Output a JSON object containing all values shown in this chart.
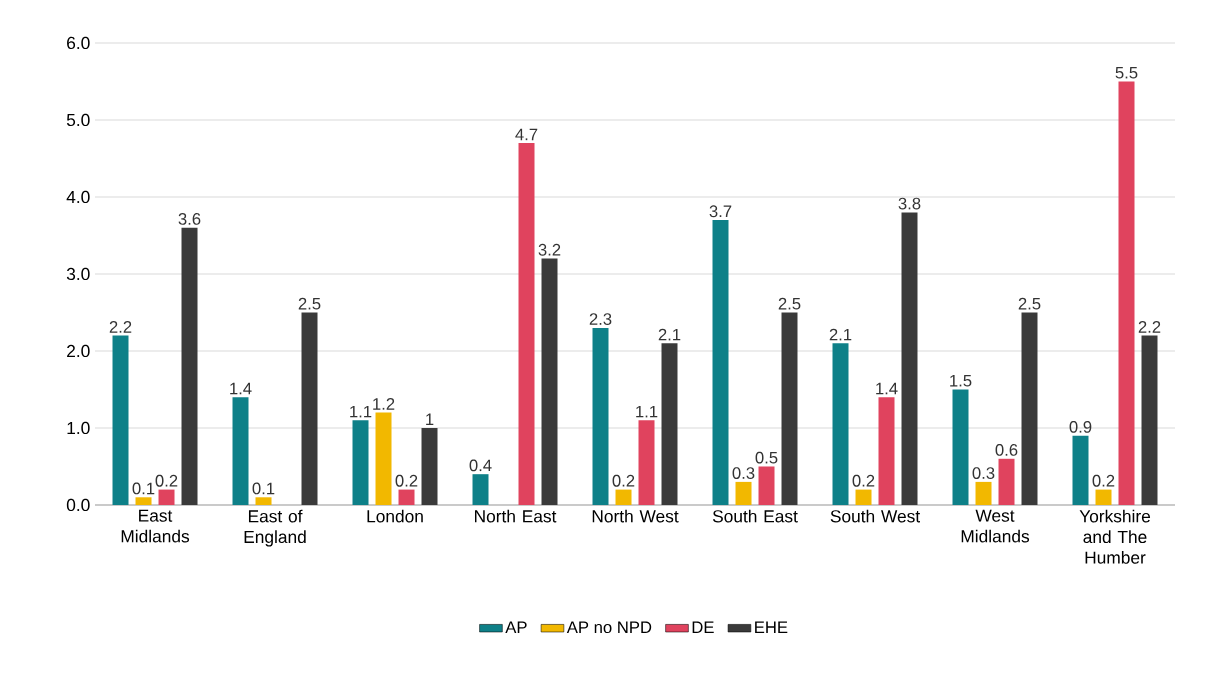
{
  "chart_data": {
    "type": "bar",
    "categories": [
      "East Midlands",
      "East of England",
      "London",
      "North East",
      "North West",
      "South East",
      "South West",
      "West Midlands",
      "Yorkshire and The Humber"
    ],
    "series": [
      {
        "name": "AP",
        "color": "#0e8088",
        "values": [
          2.2,
          1.4,
          1.1,
          0.4,
          2.3,
          3.7,
          2.1,
          1.5,
          0.9
        ],
        "value_labels": [
          "2.2",
          "1.4",
          "1.1",
          "0.4",
          "2.3",
          "3.7",
          "2.1",
          "1.5",
          "0.9"
        ]
      },
      {
        "name": "AP no NPD",
        "color": "#f2b800",
        "values": [
          0.1,
          0.1,
          1.2,
          null,
          0.2,
          0.3,
          0.2,
          0.3,
          0.2
        ],
        "value_labels": [
          "0.1",
          "0.1",
          "1.2",
          null,
          "0.2",
          "0.3",
          "0.2",
          "0.3",
          "0.2"
        ]
      },
      {
        "name": "DE",
        "color": "#e0435e",
        "values": [
          0.2,
          null,
          0.2,
          4.7,
          1.1,
          0.5,
          1.4,
          0.6,
          5.5
        ],
        "value_labels": [
          "0.2",
          null,
          "0.2",
          "4.7",
          "1.1",
          "0.5",
          "1.4",
          "0.6",
          "5.5"
        ]
      },
      {
        "name": "EHE",
        "color": "#3a3a3a",
        "values": [
          3.6,
          2.5,
          1,
          3.2,
          2.1,
          2.5,
          3.8,
          2.5,
          2.2
        ],
        "value_labels": [
          "3.6",
          "2.5",
          "1",
          "3.2",
          "2.1",
          "2.5",
          "3.8",
          "2.5",
          "2.2"
        ]
      }
    ],
    "ylim": [
      0,
      6
    ],
    "yticks": [
      {
        "value": 0,
        "label": "0.0"
      },
      {
        "value": 1,
        "label": "1.0"
      },
      {
        "value": 2,
        "label": "2.0"
      },
      {
        "value": 3,
        "label": "3.0"
      },
      {
        "value": 4,
        "label": "4.0"
      },
      {
        "value": 5,
        "label": "5.0"
      },
      {
        "value": 6,
        "label": "6.0"
      }
    ],
    "grid": "y",
    "legend": "bottom"
  }
}
